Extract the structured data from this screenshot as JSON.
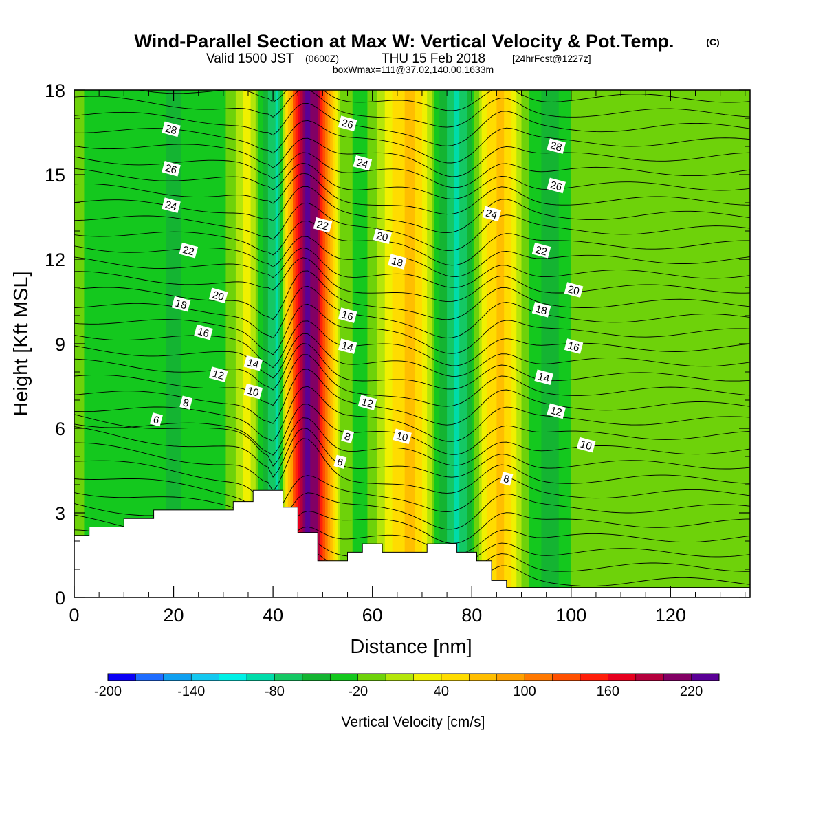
{
  "header": {
    "title": "Wind-Parallel Section at Max W: Vertical Velocity & Pot.Temp.",
    "copyright": "(C)",
    "valid_prefix": "Valid 1500 JST",
    "valid_utc": "(0600Z)",
    "valid_date": "THU 15 Feb 2018",
    "forecast": "[24hrFcst@1227z]",
    "boxinfo": "boxWmax=111@37.02,140.00,1633m"
  },
  "chart_data": {
    "type": "heatmap",
    "xlabel": "Distance [nm]",
    "ylabel": "Height [Kft MSL]",
    "xlim": [
      0,
      136
    ],
    "ylim": [
      0,
      18
    ],
    "xticks": [
      "0",
      "20",
      "40",
      "60",
      "80",
      "100",
      "120"
    ],
    "yticks": [
      "0",
      "3",
      "6",
      "9",
      "12",
      "15",
      "18"
    ],
    "colorbar": {
      "label": "Vertical Velocity [cm/s]",
      "range": [
        -200,
        250
      ],
      "step": 20,
      "tick_labels": [
        "-200",
        "-140",
        "-80",
        "-20",
        "40",
        "100",
        "160",
        "220"
      ],
      "colors": [
        "#0a00f5",
        "#1e6cff",
        "#0fa0f0",
        "#14c8f0",
        "#00f0e6",
        "#00dcaa",
        "#14c864",
        "#14b432",
        "#14c81e",
        "#6ed20a",
        "#b4e60a",
        "#f0f000",
        "#ffdc00",
        "#ffbe00",
        "#ffa000",
        "#ff7800",
        "#ff5000",
        "#ff1e0a",
        "#e6001e",
        "#b4003c",
        "#820064",
        "#5a0096"
      ]
    },
    "vertical_velocity_columns": [
      {
        "x": 0,
        "w": -10
      },
      {
        "x": 4,
        "w": -30
      },
      {
        "x": 8,
        "w": -20
      },
      {
        "x": 12,
        "w": -40
      },
      {
        "x": 16,
        "w": -20
      },
      {
        "x": 20,
        "w": -50
      },
      {
        "x": 24,
        "w": -20
      },
      {
        "x": 28,
        "w": -40
      },
      {
        "x": 32,
        "w": -10
      },
      {
        "x": 35,
        "w": 30
      },
      {
        "x": 38,
        "w": -40
      },
      {
        "x": 41,
        "w": -90
      },
      {
        "x": 43,
        "w": 60
      },
      {
        "x": 45,
        "w": 160
      },
      {
        "x": 47,
        "w": 230
      },
      {
        "x": 49,
        "w": 200
      },
      {
        "x": 51,
        "w": 90
      },
      {
        "x": 54,
        "w": -10
      },
      {
        "x": 58,
        "w": -30
      },
      {
        "x": 62,
        "w": 10
      },
      {
        "x": 65,
        "w": 50
      },
      {
        "x": 68,
        "w": 70
      },
      {
        "x": 71,
        "w": 20
      },
      {
        "x": 74,
        "w": -50
      },
      {
        "x": 77,
        "w": -90
      },
      {
        "x": 80,
        "w": -40
      },
      {
        "x": 83,
        "w": 40
      },
      {
        "x": 86,
        "w": 70
      },
      {
        "x": 89,
        "w": 20
      },
      {
        "x": 92,
        "w": -30
      },
      {
        "x": 96,
        "w": -50
      },
      {
        "x": 100,
        "w": -20
      },
      {
        "x": 104,
        "w": 0
      },
      {
        "x": 110,
        "w": -20
      },
      {
        "x": 120,
        "w": -10
      },
      {
        "x": 136,
        "w": -10
      }
    ],
    "terrain": [
      [
        0,
        2.2
      ],
      [
        3,
        2.2
      ],
      [
        3,
        2.5
      ],
      [
        10,
        2.5
      ],
      [
        10,
        2.8
      ],
      [
        16,
        2.8
      ],
      [
        16,
        3.1
      ],
      [
        32,
        3.1
      ],
      [
        32,
        3.4
      ],
      [
        36,
        3.4
      ],
      [
        36,
        3.8
      ],
      [
        42,
        3.8
      ],
      [
        42,
        3.2
      ],
      [
        45,
        3.2
      ],
      [
        45,
        2.3
      ],
      [
        49,
        2.3
      ],
      [
        49,
        1.3
      ],
      [
        55,
        1.3
      ],
      [
        55,
        1.6
      ],
      [
        58,
        1.6
      ],
      [
        58,
        1.9
      ],
      [
        62,
        1.9
      ],
      [
        62,
        1.6
      ],
      [
        71,
        1.6
      ],
      [
        71,
        1.9
      ],
      [
        77,
        1.9
      ],
      [
        77,
        1.6
      ],
      [
        81,
        1.6
      ],
      [
        81,
        1.3
      ],
      [
        84,
        1.3
      ],
      [
        84,
        0.6
      ],
      [
        87,
        0.6
      ],
      [
        87,
        0.35
      ],
      [
        136,
        0.35
      ]
    ],
    "potential_temperature_contour_labels": [
      {
        "text": "28",
        "x": 19.5,
        "y": 16.6
      },
      {
        "text": "26",
        "x": 19.5,
        "y": 15.2
      },
      {
        "text": "24",
        "x": 19.5,
        "y": 13.9
      },
      {
        "text": "22",
        "x": 23,
        "y": 12.3
      },
      {
        "text": "20",
        "x": 29,
        "y": 10.7
      },
      {
        "text": "18",
        "x": 21.5,
        "y": 10.4
      },
      {
        "text": "16",
        "x": 26,
        "y": 9.4
      },
      {
        "text": "14",
        "x": 36,
        "y": 8.3
      },
      {
        "text": "12",
        "x": 29,
        "y": 7.9
      },
      {
        "text": "10",
        "x": 36,
        "y": 7.3
      },
      {
        "text": "8",
        "x": 22.5,
        "y": 6.9
      },
      {
        "text": "6",
        "x": 16.5,
        "y": 6.3
      },
      {
        "text": "26",
        "x": 55,
        "y": 16.8
      },
      {
        "text": "24",
        "x": 58,
        "y": 15.4
      },
      {
        "text": "22",
        "x": 50,
        "y": 13.2
      },
      {
        "text": "20",
        "x": 62,
        "y": 12.8
      },
      {
        "text": "18",
        "x": 65,
        "y": 11.9
      },
      {
        "text": "16",
        "x": 55,
        "y": 10.0
      },
      {
        "text": "14",
        "x": 55,
        "y": 8.9
      },
      {
        "text": "12",
        "x": 59,
        "y": 6.9
      },
      {
        "text": "10",
        "x": 66,
        "y": 5.7
      },
      {
        "text": "8",
        "x": 55,
        "y": 5.7
      },
      {
        "text": "6",
        "x": 53.5,
        "y": 4.8
      },
      {
        "text": "28",
        "x": 97,
        "y": 16.0
      },
      {
        "text": "26",
        "x": 97,
        "y": 14.6
      },
      {
        "text": "24",
        "x": 84,
        "y": 13.6
      },
      {
        "text": "22",
        "x": 94,
        "y": 12.3
      },
      {
        "text": "20",
        "x": 100.5,
        "y": 10.9
      },
      {
        "text": "18",
        "x": 94,
        "y": 10.2
      },
      {
        "text": "16",
        "x": 100.5,
        "y": 8.9
      },
      {
        "text": "14",
        "x": 94.5,
        "y": 7.8
      },
      {
        "text": "12",
        "x": 97,
        "y": 6.6
      },
      {
        "text": "10",
        "x": 103,
        "y": 5.4
      },
      {
        "text": "8",
        "x": 87,
        "y": 4.2
      }
    ],
    "grid": false,
    "legend": "colorbar-bottom"
  }
}
